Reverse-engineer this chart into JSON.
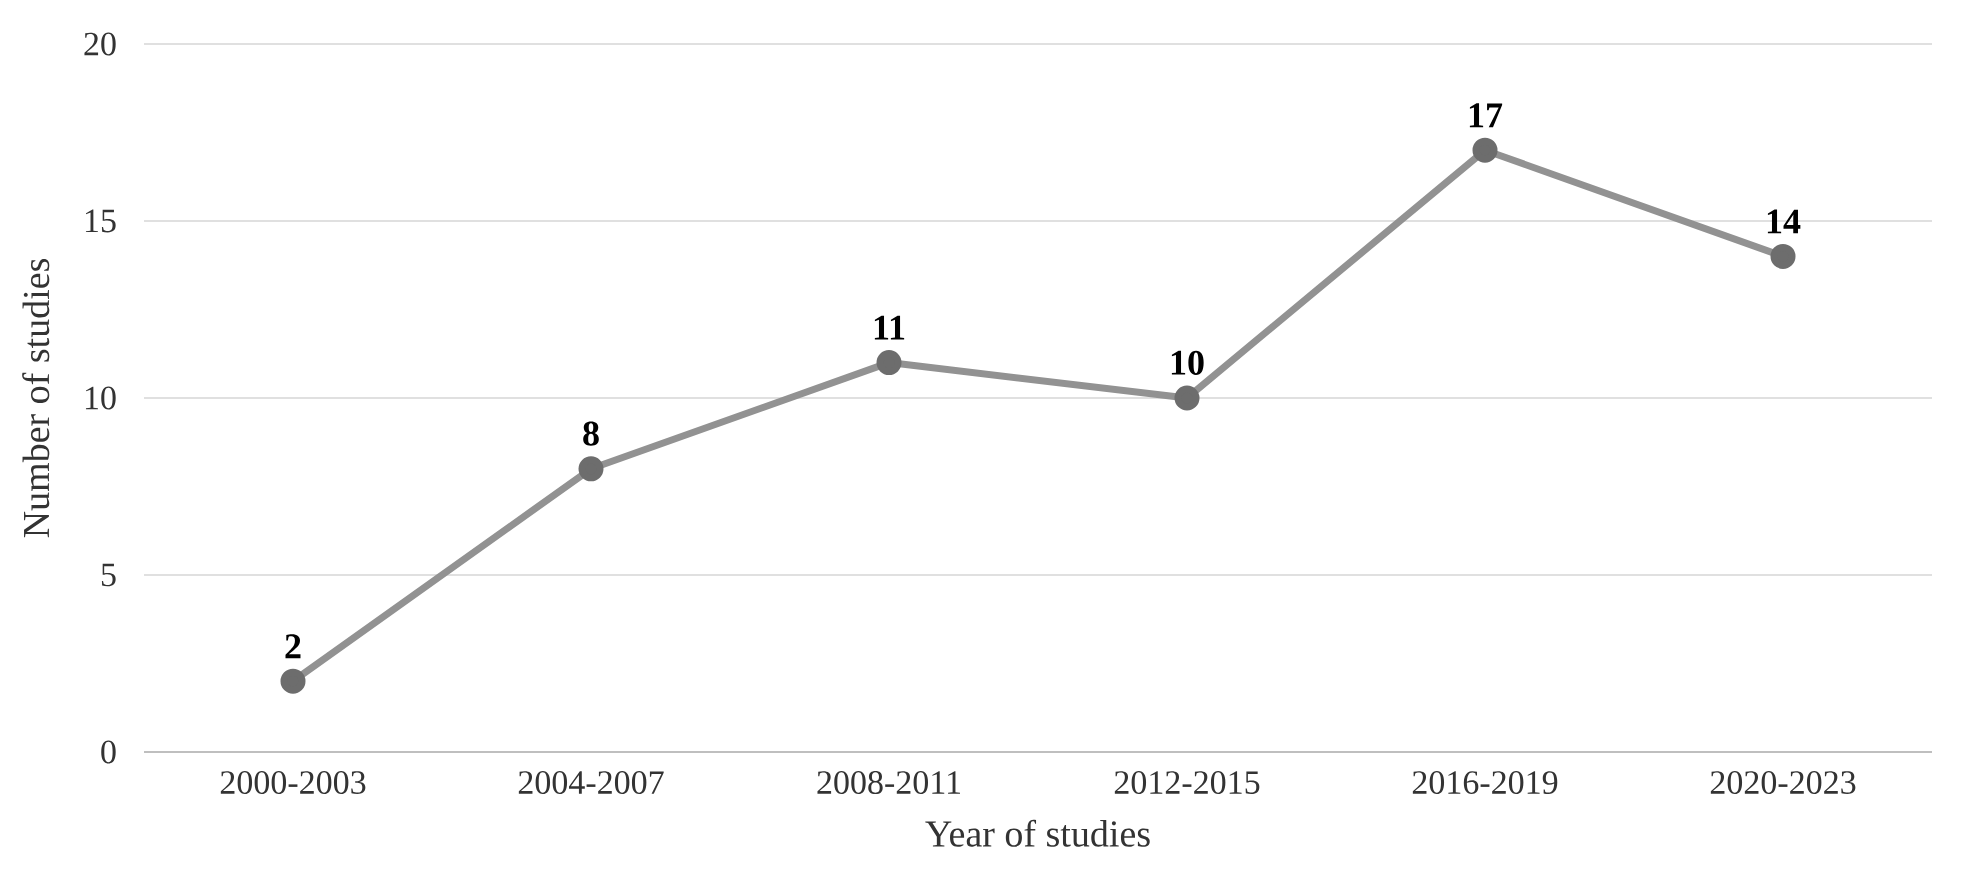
{
  "chart_data": {
    "type": "line",
    "xlabel": "Year of studies",
    "ylabel": "Number of studies",
    "categories": [
      "2000-2003",
      "2004-2007",
      "2008-2011",
      "2012-2015",
      "2016-2019",
      "2020-2023"
    ],
    "values": [
      2,
      8,
      11,
      10,
      17,
      14
    ],
    "color": "#929292",
    "ylim": [
      0,
      20
    ],
    "yticks": [
      0,
      5,
      10,
      15,
      20
    ],
    "grid": "y",
    "marker": "circle",
    "line_style": "solid",
    "data_labels": true
  }
}
